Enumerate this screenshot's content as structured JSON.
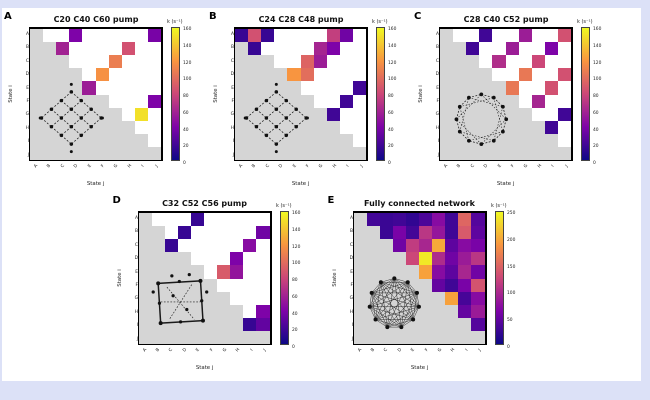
{
  "figure": {
    "frame_color": "#dce1f7",
    "background": "#ffffff",
    "mask_color": "#d5d5d5",
    "colormap": [
      "#0d0887",
      "#7e03a8",
      "#cc4778",
      "#f89540",
      "#f0f921"
    ],
    "panels": [
      {
        "letter": "A",
        "title": "C20 C40 C60 pump",
        "x_label": "State j",
        "y_label": "State i",
        "colorbar": {
          "label": "k (s⁻¹)",
          "ticks": [
            "160",
            "140",
            "120",
            "100",
            "80",
            "60",
            "40",
            "20",
            "0"
          ]
        },
        "inset": "lattice"
      },
      {
        "letter": "B",
        "title": "C24 C28 C48 pump",
        "x_label": "State j",
        "y_label": "State i",
        "colorbar": {
          "label": "k (s⁻¹)",
          "ticks": [
            "160",
            "140",
            "120",
            "100",
            "80",
            "60",
            "40",
            "20",
            "0"
          ]
        },
        "inset": "lattice"
      },
      {
        "letter": "C",
        "title": "C28 C40 C52 pump",
        "x_label": "State j",
        "y_label": "State i",
        "colorbar": {
          "label": "k (s⁻¹)",
          "ticks": [
            "160",
            "140",
            "120",
            "100",
            "80",
            "60",
            "40",
            "20",
            "0"
          ]
        },
        "inset": "ring"
      },
      {
        "letter": "D",
        "title": "C32 C52 C56 pump",
        "x_label": "State j",
        "y_label": "State i",
        "colorbar": {
          "label": "k (s⁻¹)",
          "ticks": [
            "160",
            "140",
            "120",
            "100",
            "80",
            "60",
            "40",
            "20",
            "0"
          ]
        },
        "inset": "square"
      },
      {
        "letter": "E",
        "title": "Fully connected network",
        "x_label": "State j",
        "y_label": "State i",
        "colorbar": {
          "label": "k (s⁻¹)",
          "ticks": [
            "250",
            "200",
            "150",
            "100",
            "50",
            "0"
          ]
        },
        "inset": "full"
      }
    ]
  },
  "chart_data": [
    {
      "type": "heatmap",
      "title": "C20 C40 C60 pump",
      "x": [
        "A",
        "B",
        "C",
        "D",
        "E",
        "F",
        "G",
        "H",
        "I",
        "J"
      ],
      "y": [
        "A",
        "B",
        "C",
        "D",
        "E",
        "F",
        "G",
        "H",
        "I",
        "J"
      ],
      "vmax": 160,
      "mask": "lower-triangle-gray",
      "cells": [
        [
          1,
          4,
          40
        ],
        [
          1,
          10,
          38
        ],
        [
          2,
          3,
          58
        ],
        [
          2,
          8,
          85
        ],
        [
          3,
          7,
          108
        ],
        [
          4,
          6,
          118
        ],
        [
          5,
          5,
          55
        ],
        [
          6,
          10,
          40
        ],
        [
          7,
          9,
          150
        ]
      ]
    },
    {
      "type": "heatmap",
      "title": "C24 C28 C48 pump",
      "x": [
        "A",
        "B",
        "C",
        "D",
        "E",
        "F",
        "G",
        "H",
        "I",
        "J"
      ],
      "y": [
        "A",
        "B",
        "C",
        "D",
        "E",
        "F",
        "G",
        "H",
        "I",
        "J"
      ],
      "vmax": 160,
      "mask": "lower-triangle-gray",
      "cells": [
        [
          1,
          1,
          15
        ],
        [
          1,
          2,
          85
        ],
        [
          1,
          3,
          15
        ],
        [
          1,
          8,
          75
        ],
        [
          1,
          9,
          35
        ],
        [
          2,
          2,
          15
        ],
        [
          2,
          7,
          60
        ],
        [
          2,
          8,
          40
        ],
        [
          3,
          6,
          95
        ],
        [
          3,
          7,
          55
        ],
        [
          4,
          5,
          120
        ],
        [
          4,
          6,
          100
        ],
        [
          5,
          10,
          18
        ],
        [
          6,
          9,
          18
        ],
        [
          7,
          8,
          18
        ]
      ]
    },
    {
      "type": "heatmap",
      "title": "C28 C40 C52 pump",
      "x": [
        "A",
        "B",
        "C",
        "D",
        "E",
        "F",
        "G",
        "H",
        "I",
        "J"
      ],
      "y": [
        "A",
        "B",
        "C",
        "D",
        "E",
        "F",
        "G",
        "H",
        "I",
        "J"
      ],
      "vmax": 160,
      "mask": "lower-triangle-gray",
      "cells": [
        [
          1,
          4,
          18
        ],
        [
          1,
          7,
          55
        ],
        [
          1,
          10,
          85
        ],
        [
          2,
          3,
          18
        ],
        [
          2,
          6,
          55
        ],
        [
          2,
          9,
          40
        ],
        [
          3,
          5,
          65
        ],
        [
          3,
          8,
          80
        ],
        [
          4,
          7,
          105
        ],
        [
          4,
          10,
          85
        ],
        [
          5,
          6,
          105
        ],
        [
          5,
          9,
          85
        ],
        [
          6,
          8,
          60
        ],
        [
          7,
          10,
          18
        ],
        [
          8,
          9,
          18
        ]
      ]
    },
    {
      "type": "heatmap",
      "title": "C32 C52 C56 pump",
      "x": [
        "A",
        "B",
        "C",
        "D",
        "E",
        "F",
        "G",
        "H",
        "I",
        "J"
      ],
      "y": [
        "A",
        "B",
        "C",
        "D",
        "E",
        "F",
        "G",
        "H",
        "I",
        "J"
      ],
      "vmax": 160,
      "mask": "lower-triangle-gray",
      "cells": [
        [
          1,
          5,
          15
        ],
        [
          2,
          4,
          15
        ],
        [
          3,
          3,
          15
        ],
        [
          2,
          10,
          35
        ],
        [
          3,
          9,
          45
        ],
        [
          4,
          8,
          40
        ],
        [
          5,
          7,
          90
        ],
        [
          5,
          8,
          50
        ],
        [
          8,
          10,
          40
        ],
        [
          9,
          9,
          15
        ],
        [
          9,
          10,
          30
        ]
      ]
    },
    {
      "type": "heatmap",
      "title": "Fully connected network",
      "x": [
        "A",
        "B",
        "C",
        "D",
        "E",
        "F",
        "G",
        "H",
        "I",
        "J"
      ],
      "y": [
        "A",
        "B",
        "C",
        "D",
        "E",
        "F",
        "G",
        "H",
        "I",
        "J"
      ],
      "vmax": 250,
      "mask": "lower-triangle-gray",
      "cells": [
        [
          1,
          2,
          30
        ],
        [
          1,
          3,
          25
        ],
        [
          1,
          4,
          28
        ],
        [
          1,
          5,
          20
        ],
        [
          1,
          6,
          35
        ],
        [
          1,
          7,
          70
        ],
        [
          1,
          8,
          28
        ],
        [
          1,
          9,
          150
        ],
        [
          1,
          10,
          40
        ],
        [
          2,
          3,
          25
        ],
        [
          2,
          4,
          60
        ],
        [
          2,
          5,
          30
        ],
        [
          2,
          6,
          110
        ],
        [
          2,
          7,
          80
        ],
        [
          2,
          8,
          28
        ],
        [
          2,
          9,
          140
        ],
        [
          2,
          10,
          45
        ],
        [
          3,
          4,
          55
        ],
        [
          3,
          5,
          115
        ],
        [
          3,
          6,
          95
        ],
        [
          3,
          7,
          200
        ],
        [
          3,
          8,
          45
        ],
        [
          3,
          9,
          70
        ],
        [
          3,
          10,
          60
        ],
        [
          4,
          5,
          125
        ],
        [
          4,
          6,
          240
        ],
        [
          4,
          7,
          100
        ],
        [
          4,
          8,
          55
        ],
        [
          4,
          9,
          85
        ],
        [
          4,
          10,
          110
        ],
        [
          5,
          6,
          195
        ],
        [
          5,
          7,
          70
        ],
        [
          5,
          8,
          45
        ],
        [
          5,
          9,
          95
        ],
        [
          5,
          10,
          55
        ],
        [
          6,
          7,
          48
        ],
        [
          6,
          8,
          28
        ],
        [
          6,
          9,
          60
        ],
        [
          6,
          10,
          135
        ],
        [
          7,
          8,
          195
        ],
        [
          7,
          9,
          32
        ],
        [
          7,
          10,
          70
        ],
        [
          8,
          9,
          48
        ],
        [
          8,
          10,
          85
        ],
        [
          9,
          10,
          40
        ]
      ]
    }
  ]
}
